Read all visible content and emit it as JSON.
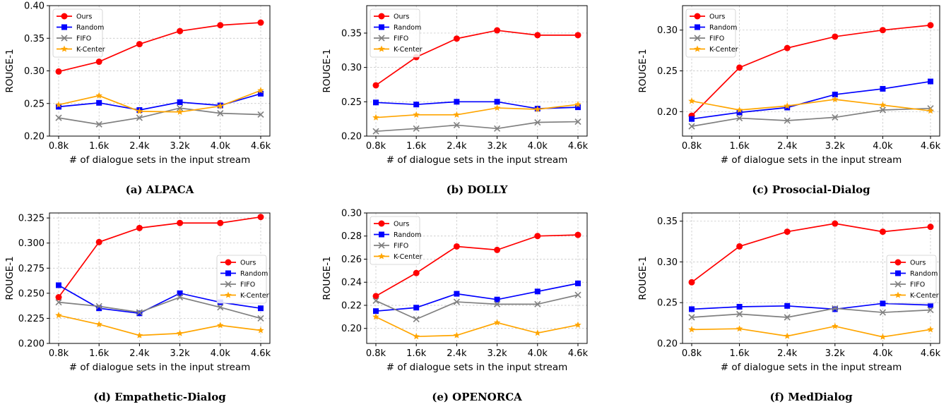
{
  "colors": {
    "Ours": "#ff0000",
    "Random": "#0000ff",
    "FIFO": "#808080",
    "K-Center": "#ffa500"
  },
  "chart_data": [
    {
      "type": "line",
      "caption": "(a) ALPACA",
      "xlabel": "# of dialogue sets in the input stream",
      "ylabel": "ROUGE-1",
      "categories": [
        "0.8k",
        "1.6k",
        "2.4k",
        "3.2k",
        "4.0k",
        "4.6k"
      ],
      "ylim": [
        0.2,
        0.4
      ],
      "yticks": [
        "0.20",
        "0.25",
        "0.30",
        "0.35",
        "0.40"
      ],
      "legend": "top-left",
      "grid": true,
      "series": [
        {
          "name": "Ours",
          "marker": "circle",
          "values": [
            0.299,
            0.314,
            0.341,
            0.361,
            0.37,
            0.374
          ]
        },
        {
          "name": "Random",
          "marker": "square",
          "values": [
            0.245,
            0.251,
            0.24,
            0.252,
            0.247,
            0.265
          ]
        },
        {
          "name": "FIFO",
          "marker": "x",
          "values": [
            0.228,
            0.218,
            0.228,
            0.243,
            0.235,
            0.233
          ]
        },
        {
          "name": "K-Center",
          "marker": "star",
          "values": [
            0.248,
            0.262,
            0.238,
            0.237,
            0.246,
            0.27
          ]
        }
      ]
    },
    {
      "type": "line",
      "caption": "(b) DOLLY",
      "xlabel": "# of dialogue sets in the input stream",
      "ylabel": "ROUGE-1",
      "categories": [
        "0.8k",
        "1.6k",
        "2.4k",
        "3.2k",
        "4.0k",
        "4.6k"
      ],
      "ylim": [
        0.2,
        0.39
      ],
      "yticks": [
        "0.20",
        "0.25",
        "0.30",
        "0.35"
      ],
      "legend": "top-left",
      "grid": true,
      "series": [
        {
          "name": "Ours",
          "marker": "circle",
          "values": [
            0.274,
            0.315,
            0.342,
            0.354,
            0.347,
            0.347
          ]
        },
        {
          "name": "Random",
          "marker": "square",
          "values": [
            0.249,
            0.246,
            0.25,
            0.25,
            0.24,
            0.242
          ]
        },
        {
          "name": "FIFO",
          "marker": "x",
          "values": [
            0.207,
            0.211,
            0.216,
            0.211,
            0.22,
            0.221
          ]
        },
        {
          "name": "K-Center",
          "marker": "star",
          "values": [
            0.227,
            0.231,
            0.231,
            0.241,
            0.239,
            0.246
          ]
        }
      ]
    },
    {
      "type": "line",
      "caption": "(c) Prosocial-Dialog",
      "xlabel": "# of dialogue sets in the input stream",
      "ylabel": "ROUGE-1",
      "categories": [
        "0.8k",
        "1.6k",
        "2.4k",
        "3.2k",
        "4.0k",
        "4.6k"
      ],
      "ylim": [
        0.17,
        0.33
      ],
      "yticks": [
        "0.20",
        "0.25",
        "0.30"
      ],
      "legend": "top-left",
      "grid": true,
      "series": [
        {
          "name": "Ours",
          "marker": "circle",
          "values": [
            0.195,
            0.254,
            0.278,
            0.292,
            0.3,
            0.306
          ]
        },
        {
          "name": "Random",
          "marker": "square",
          "values": [
            0.191,
            0.199,
            0.205,
            0.221,
            0.228,
            0.237
          ]
        },
        {
          "name": "FIFO",
          "marker": "x",
          "values": [
            0.182,
            0.192,
            0.189,
            0.193,
            0.202,
            0.204
          ]
        },
        {
          "name": "K-Center",
          "marker": "star",
          "values": [
            0.213,
            0.202,
            0.207,
            0.215,
            0.208,
            0.201
          ]
        }
      ]
    },
    {
      "type": "line",
      "caption": "(d) Empathetic-Dialog",
      "xlabel": "# of dialogue sets in the input stream",
      "ylabel": "ROUGE-1",
      "categories": [
        "0.8k",
        "1.6k",
        "2.4k",
        "3.2k",
        "4.0k",
        "4.6k"
      ],
      "ylim": [
        0.2,
        0.33
      ],
      "yticks": [
        "0.200",
        "0.225",
        "0.250",
        "0.275",
        "0.300",
        "0.325"
      ],
      "legend": "middle-right",
      "grid": true,
      "series": [
        {
          "name": "Ours",
          "marker": "circle",
          "values": [
            0.246,
            0.301,
            0.315,
            0.32,
            0.32,
            0.326
          ]
        },
        {
          "name": "Random",
          "marker": "square",
          "values": [
            0.258,
            0.235,
            0.23,
            0.25,
            0.241,
            0.235
          ]
        },
        {
          "name": "FIFO",
          "marker": "x",
          "values": [
            0.241,
            0.237,
            0.231,
            0.246,
            0.236,
            0.225
          ]
        },
        {
          "name": "K-Center",
          "marker": "star",
          "values": [
            0.228,
            0.219,
            0.208,
            0.21,
            0.218,
            0.213
          ]
        }
      ]
    },
    {
      "type": "line",
      "caption": "(e) OPENORCA",
      "xlabel": "# of dialogue sets in the input stream",
      "ylabel": "ROUGE-1",
      "categories": [
        "0.8k",
        "1.6k",
        "2.4k",
        "3.2k",
        "4.0k",
        "4.6k"
      ],
      "ylim": [
        0.187,
        0.3
      ],
      "yticks": [
        "0.20",
        "0.22",
        "0.24",
        "0.26",
        "0.28",
        "0.30"
      ],
      "legend": "top-left",
      "grid": true,
      "series": [
        {
          "name": "Ours",
          "marker": "circle",
          "values": [
            0.228,
            0.248,
            0.271,
            0.268,
            0.28,
            0.281
          ]
        },
        {
          "name": "Random",
          "marker": "square",
          "values": [
            0.215,
            0.218,
            0.23,
            0.225,
            0.232,
            0.239
          ]
        },
        {
          "name": "FIFO",
          "marker": "x",
          "values": [
            0.224,
            0.208,
            0.223,
            0.221,
            0.221,
            0.229
          ]
        },
        {
          "name": "K-Center",
          "marker": "star",
          "values": [
            0.21,
            0.193,
            0.194,
            0.205,
            0.196,
            0.203
          ]
        }
      ]
    },
    {
      "type": "line",
      "caption": "(f) MedDialog",
      "xlabel": "# of dialogue sets in the input stream",
      "ylabel": "ROUGE-1",
      "categories": [
        "0.8k",
        "1.6k",
        "2.4k",
        "3.2k",
        "4.0k",
        "4.6k"
      ],
      "ylim": [
        0.2,
        0.36
      ],
      "yticks": [
        "0.20",
        "0.25",
        "0.30",
        "0.35"
      ],
      "legend": "middle-right",
      "grid": true,
      "series": [
        {
          "name": "Ours",
          "marker": "circle",
          "values": [
            0.275,
            0.319,
            0.337,
            0.347,
            0.337,
            0.343
          ]
        },
        {
          "name": "Random",
          "marker": "square",
          "values": [
            0.242,
            0.245,
            0.246,
            0.242,
            0.249,
            0.247
          ]
        },
        {
          "name": "FIFO",
          "marker": "x",
          "values": [
            0.232,
            0.236,
            0.232,
            0.243,
            0.238,
            0.241
          ]
        },
        {
          "name": "K-Center",
          "marker": "star",
          "values": [
            0.217,
            0.218,
            0.209,
            0.221,
            0.208,
            0.217
          ]
        }
      ]
    }
  ]
}
